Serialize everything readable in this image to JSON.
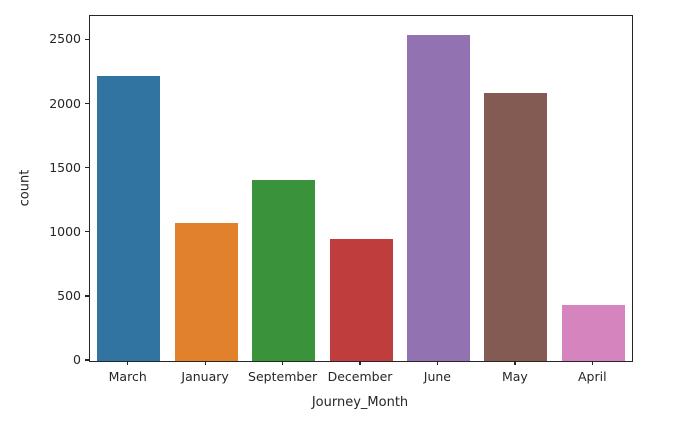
{
  "chart_data": {
    "type": "bar",
    "title": "",
    "xlabel": "Journey_Month",
    "ylabel": "count",
    "categories": [
      "March",
      "January",
      "September",
      "December",
      "June",
      "May",
      "April"
    ],
    "values": [
      2220,
      1075,
      1410,
      955,
      2545,
      2090,
      435
    ],
    "bar_colors": [
      "#3274a1",
      "#e1812c",
      "#3a923a",
      "#c03d3e",
      "#9372b2",
      "#845b53",
      "#d684bd"
    ],
    "ylim": [
      0,
      2690
    ],
    "yticks": [
      0,
      500,
      1000,
      1500,
      2000,
      2500
    ],
    "grid": false,
    "legend": null,
    "spine_color": "#262626"
  }
}
